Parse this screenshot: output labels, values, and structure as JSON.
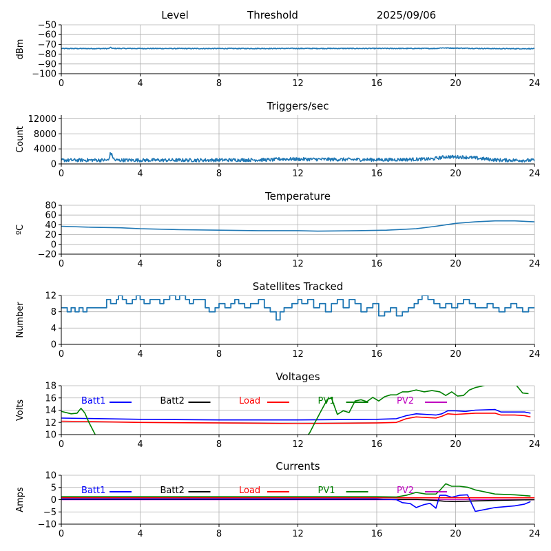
{
  "header": {
    "left": "Level",
    "middle": "Threshold",
    "right": "2025/09/06"
  },
  "colors": {
    "series": "#1f77b4",
    "grid": "#b0b0b0",
    "blue": "#0000ff",
    "black": "#000000",
    "red": "#ff0000",
    "green": "#008000",
    "magenta": "#bf00bf"
  },
  "chart_data": [
    {
      "type": "line",
      "title": "",
      "ylabel": "dBm",
      "xlim": [
        0,
        24
      ],
      "xticks": [
        0,
        4,
        8,
        12,
        16,
        20,
        24
      ],
      "ylim": [
        -100,
        -50
      ],
      "yticks": [
        -100,
        -90,
        -80,
        -70,
        -60,
        -50
      ],
      "grid": true,
      "series": [
        {
          "color": "#1f77b4",
          "noise": 0.4,
          "x": [
            0,
            2.4,
            2.5,
            2.6,
            7,
            12,
            16,
            19,
            19.3,
            19.8,
            20.5,
            22.2,
            24
          ],
          "y": [
            -74.3,
            -74.3,
            -73.2,
            -74.2,
            -74.3,
            -74.2,
            -74.2,
            -74.2,
            -73.6,
            -73.8,
            -74.0,
            -74.4,
            -74.4
          ]
        }
      ]
    },
    {
      "type": "line",
      "title": "Triggers/sec",
      "ylabel": "Count",
      "xlim": [
        0,
        24
      ],
      "xticks": [
        0,
        4,
        8,
        12,
        16,
        20,
        24
      ],
      "ylim": [
        0,
        13000
      ],
      "yticks": [
        0,
        4000,
        8000,
        12000
      ],
      "grid": true,
      "series": [
        {
          "color": "#1f77b4",
          "noise": 450,
          "x": [
            0,
            2.4,
            2.5,
            2.7,
            7,
            10.8,
            11,
            16.5,
            18.8,
            19.5,
            20.5,
            22.2,
            24
          ],
          "y": [
            1000,
            1000,
            3000,
            1000,
            1000,
            1100,
            1300,
            1100,
            1300,
            1900,
            1800,
            1000,
            950
          ]
        }
      ]
    },
    {
      "type": "line",
      "title": "Temperature",
      "ylabel": "ºC",
      "xlim": [
        0,
        24
      ],
      "xticks": [
        0,
        4,
        8,
        12,
        16,
        20,
        24
      ],
      "ylim": [
        -20,
        80
      ],
      "yticks": [
        -20,
        0,
        20,
        40,
        60,
        80
      ],
      "grid": true,
      "series": [
        {
          "color": "#1f77b4",
          "noise": 0,
          "x": [
            0,
            1.5,
            3,
            4,
            6,
            8,
            10,
            12,
            13,
            15,
            16.5,
            18,
            19,
            20,
            21,
            22,
            23,
            24
          ],
          "y": [
            37,
            35,
            34,
            32,
            30,
            29,
            28,
            28,
            27,
            28,
            29,
            32,
            37,
            43,
            46,
            48,
            48,
            46
          ]
        }
      ]
    },
    {
      "type": "line",
      "title": "Satellites Tracked",
      "ylabel": "Number",
      "xlim": [
        0,
        24
      ],
      "xticks": [
        0,
        4,
        8,
        12,
        16,
        20,
        24
      ],
      "ylim": [
        0,
        12
      ],
      "yticks": [
        0,
        4,
        8,
        12
      ],
      "grid": true,
      "step": true,
      "series": [
        {
          "color": "#1f77b4",
          "noise": 0,
          "x": [
            0,
            0.3,
            0.5,
            0.7,
            0.9,
            1.1,
            1.3,
            2.0,
            2.3,
            2.5,
            2.8,
            2.9,
            3.1,
            3.3,
            3.6,
            3.8,
            4.0,
            4.2,
            4.5,
            5.0,
            5.2,
            5.5,
            5.8,
            6.0,
            6.3,
            6.5,
            6.7,
            7.0,
            7.3,
            7.5,
            7.8,
            8.0,
            8.3,
            8.6,
            8.8,
            9.0,
            9.3,
            9.6,
            10.0,
            10.3,
            10.6,
            10.9,
            11.1,
            11.3,
            11.7,
            12.0,
            12.2,
            12.5,
            12.8,
            13.1,
            13.4,
            13.7,
            14.0,
            14.3,
            14.6,
            14.9,
            15.2,
            15.5,
            15.8,
            16.1,
            16.4,
            16.7,
            17.0,
            17.3,
            17.6,
            17.9,
            18.1,
            18.3,
            18.6,
            18.9,
            19.2,
            19.5,
            19.8,
            20.1,
            20.4,
            20.7,
            21.0,
            21.3,
            21.6,
            21.9,
            22.2,
            22.5,
            22.8,
            23.1,
            23.4,
            23.7,
            24
          ],
          "y": [
            9,
            8,
            9,
            8,
            9,
            8,
            9,
            9,
            11,
            10,
            11,
            12,
            11,
            10,
            11,
            12,
            11,
            10,
            11,
            10,
            11,
            12,
            11,
            12,
            11,
            10,
            11,
            11,
            9,
            8,
            9,
            10,
            9,
            10,
            11,
            10,
            9,
            10,
            11,
            9,
            8,
            6,
            8,
            9,
            10,
            11,
            10,
            11,
            9,
            10,
            8,
            10,
            11,
            9,
            11,
            10,
            8,
            9,
            10,
            7,
            8,
            9,
            7,
            8,
            9,
            10,
            11,
            12,
            11,
            10,
            9,
            10,
            9,
            10,
            11,
            10,
            9,
            9,
            10,
            9,
            8,
            9,
            10,
            9,
            8,
            9,
            9
          ]
        }
      ]
    },
    {
      "type": "line",
      "title": "Voltages",
      "ylabel": "Volts",
      "xlim": [
        0,
        24
      ],
      "xticks": [
        0,
        4,
        8,
        12,
        16,
        20,
        24
      ],
      "ylim": [
        10,
        18
      ],
      "yticks": [
        10,
        12,
        14,
        16,
        18
      ],
      "grid": true,
      "legend": [
        {
          "label": "Batt1",
          "color": "#0000ff"
        },
        {
          "label": "Batt2",
          "color": "#000000"
        },
        {
          "label": "Load",
          "color": "#ff0000"
        },
        {
          "label": "PV1",
          "color": "#008000"
        },
        {
          "label": "PV2",
          "color": "#bf00bf"
        }
      ],
      "series": [
        {
          "color": "#0000ff",
          "noise": 0,
          "x": [
            0,
            4,
            8,
            12,
            16,
            17,
            17.5,
            18,
            19,
            19.3,
            19.6,
            20,
            20.5,
            21,
            22,
            22.3,
            23,
            23.5,
            23.8
          ],
          "y": [
            12.7,
            12.5,
            12.4,
            12.4,
            12.5,
            12.6,
            13.1,
            13.4,
            13.2,
            13.4,
            13.9,
            13.9,
            13.8,
            14.0,
            14.1,
            13.7,
            13.7,
            13.7,
            13.5
          ]
        },
        {
          "color": "#ff0000",
          "noise": 0,
          "x": [
            0,
            4,
            8,
            12,
            16,
            17,
            17.5,
            18,
            19,
            19.3,
            19.6,
            20,
            20.5,
            21,
            22,
            22.3,
            23,
            23.5,
            23.8
          ],
          "y": [
            12.2,
            12.0,
            11.9,
            11.8,
            11.9,
            12.0,
            12.6,
            12.9,
            12.7,
            13.0,
            13.4,
            13.3,
            13.4,
            13.5,
            13.5,
            13.2,
            13.2,
            13.1,
            12.9
          ]
        },
        {
          "color": "#008000",
          "noise": 0,
          "x": [
            0,
            0.5,
            0.8,
            1.0,
            1.2,
            1.4,
            1.8,
            12.4,
            12.6,
            12.9,
            13.2,
            13.5,
            13.7,
            14.0,
            14.3,
            14.6,
            14.9,
            15.2,
            15.5,
            15.8,
            16.1,
            16.4,
            16.7,
            17.0,
            17.3,
            17.6,
            18.0,
            18.4,
            18.8,
            19.2,
            19.5,
            19.8,
            20.1,
            20.4,
            20.7,
            21.0,
            21.3,
            21.6,
            22.0,
            22.4,
            22.8,
            23.1,
            23.4,
            23.7
          ],
          "y": [
            13.8,
            13.4,
            13.5,
            14.3,
            13.5,
            12.0,
            9.5,
            9.5,
            10.3,
            12.2,
            14.0,
            15.8,
            16.0,
            13.3,
            13.9,
            13.6,
            15.5,
            15.7,
            15.4,
            16.1,
            15.5,
            16.2,
            16.5,
            16.5,
            17.0,
            17.0,
            17.3,
            17.0,
            17.2,
            17.0,
            16.4,
            17.0,
            16.3,
            16.4,
            17.3,
            17.7,
            17.9,
            18.2,
            18.6,
            18.8,
            18.6,
            18.0,
            16.8,
            16.7
          ]
        }
      ]
    },
    {
      "type": "line",
      "title": "Currents",
      "ylabel": "Amps",
      "xlim": [
        0,
        24
      ],
      "xticks": [
        0,
        4,
        8,
        12,
        16,
        20,
        24
      ],
      "ylim": [
        -10,
        10
      ],
      "yticks": [
        -10,
        -5,
        0,
        5,
        10
      ],
      "grid": true,
      "legend": [
        {
          "label": "Batt1",
          "color": "#0000ff"
        },
        {
          "label": "Batt2",
          "color": "#000000"
        },
        {
          "label": "Load",
          "color": "#ff0000"
        },
        {
          "label": "PV1",
          "color": "#008000"
        },
        {
          "label": "PV2",
          "color": "#bf00bf"
        }
      ],
      "series": [
        {
          "color": "#bf00bf",
          "noise": 0,
          "x": [
            0,
            24
          ],
          "y": [
            0.0,
            0.0
          ]
        },
        {
          "color": "#000000",
          "noise": 0,
          "x": [
            0,
            4,
            8,
            12,
            16,
            17,
            18,
            19,
            19.5,
            20,
            21,
            22,
            24
          ],
          "y": [
            0.1,
            0.1,
            0.1,
            0.1,
            0.1,
            0.1,
            0.1,
            -0.3,
            -0.7,
            -0.8,
            -0.5,
            -0.3,
            0.0
          ]
        },
        {
          "color": "#0000ff",
          "noise": 0,
          "x": [
            0,
            4,
            8,
            12,
            16,
            17,
            17.3,
            17.7,
            18,
            18.4,
            18.7,
            19.0,
            19.2,
            19.5,
            19.8,
            20.2,
            20.6,
            21.0,
            21.5,
            22,
            23,
            23.5,
            23.8
          ],
          "y": [
            0.3,
            0.3,
            0.3,
            0.3,
            0.3,
            0,
            -1.2,
            -1.6,
            -3.2,
            -2.0,
            -1.5,
            -3.5,
            1.8,
            1.8,
            1.0,
            1.8,
            2.0,
            -4.8,
            -4.0,
            -3.2,
            -2.5,
            -1.8,
            -0.8
          ]
        },
        {
          "color": "#ff0000",
          "noise": 0,
          "x": [
            0,
            24
          ],
          "y": [
            0.8,
            0.8
          ]
        },
        {
          "color": "#008000",
          "noise": 0,
          "x": [
            0,
            4,
            8,
            12,
            16,
            17,
            17.5,
            18,
            18.5,
            19,
            19.2,
            19.5,
            19.8,
            20.2,
            20.6,
            21.0,
            22,
            23,
            23.8
          ],
          "y": [
            1.2,
            1.2,
            1.2,
            1.2,
            1.2,
            1.1,
            1.8,
            3.0,
            2.3,
            2.3,
            3.8,
            6.5,
            5.5,
            5.5,
            5.1,
            4.0,
            2.3,
            2.0,
            1.5
          ]
        }
      ]
    }
  ]
}
